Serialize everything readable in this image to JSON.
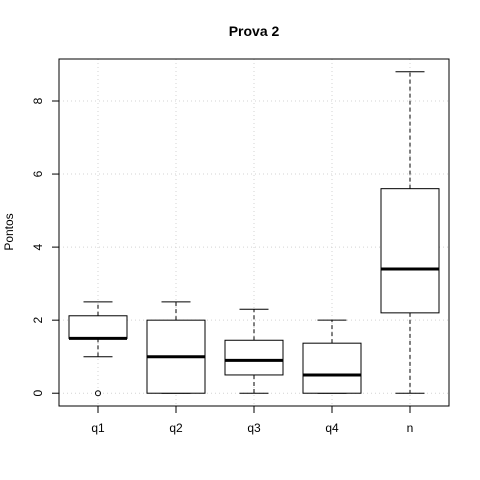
{
  "chart_data": {
    "type": "box",
    "title": "Prova 2",
    "xlabel": "",
    "ylabel": "Pontos",
    "ylim": [
      -0.35,
      9.15
    ],
    "yticks": [
      0,
      2,
      4,
      6,
      8
    ],
    "grid": true,
    "categories": [
      "q1",
      "q2",
      "q3",
      "q4",
      "n"
    ],
    "boxes": [
      {
        "label": "q1",
        "whisker_low": 1.0,
        "q1": 1.5,
        "median": 1.5,
        "q3": 2.12,
        "whisker_high": 2.5,
        "outliers": [
          0
        ]
      },
      {
        "label": "q2",
        "whisker_low": 0.0,
        "q1": 0.0,
        "median": 1.0,
        "q3": 2.0,
        "whisker_high": 2.5,
        "outliers": []
      },
      {
        "label": "q3",
        "whisker_low": 0.0,
        "q1": 0.5,
        "median": 0.9,
        "q3": 1.45,
        "whisker_high": 2.3,
        "outliers": []
      },
      {
        "label": "q4",
        "whisker_low": 0.0,
        "q1": 0.0,
        "median": 0.5,
        "q3": 1.37,
        "whisker_high": 2.0,
        "outliers": []
      },
      {
        "label": "n",
        "whisker_low": 0.0,
        "q1": 2.2,
        "median": 3.4,
        "q3": 5.6,
        "whisker_high": 8.8,
        "outliers": []
      }
    ]
  }
}
